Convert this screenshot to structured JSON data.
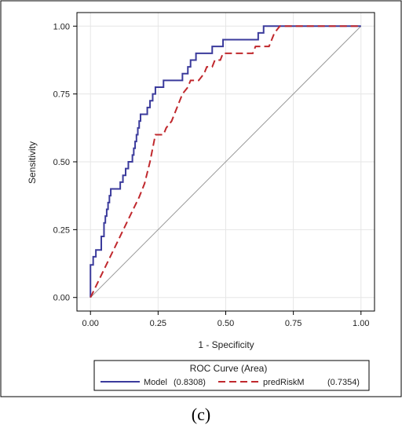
{
  "chart_data": {
    "type": "line",
    "xlabel": "1 - Specificity",
    "ylabel": "Sensitivity",
    "xlim": [
      -0.05,
      1.05
    ],
    "ylim": [
      -0.05,
      1.05
    ],
    "x_ticks": [
      "0.00",
      "0.25",
      "0.50",
      "0.75",
      "1.00"
    ],
    "y_ticks": [
      "0.00",
      "0.25",
      "0.50",
      "0.75",
      "1.00"
    ],
    "grid": true,
    "legend": {
      "title": "ROC Curve (Area)",
      "placement": "bottom"
    },
    "series": [
      {
        "name": "Model",
        "area": "(0.8308)",
        "color": "#3b3b9c",
        "style": "solid",
        "points": [
          [
            0.0,
            0.0
          ],
          [
            0.0,
            0.06
          ],
          [
            0.0,
            0.12
          ],
          [
            0.01,
            0.12
          ],
          [
            0.01,
            0.15
          ],
          [
            0.02,
            0.15
          ],
          [
            0.02,
            0.175
          ],
          [
            0.04,
            0.175
          ],
          [
            0.04,
            0.225
          ],
          [
            0.05,
            0.225
          ],
          [
            0.05,
            0.275
          ],
          [
            0.055,
            0.275
          ],
          [
            0.055,
            0.3
          ],
          [
            0.06,
            0.3
          ],
          [
            0.06,
            0.325
          ],
          [
            0.065,
            0.325
          ],
          [
            0.065,
            0.35
          ],
          [
            0.07,
            0.35
          ],
          [
            0.07,
            0.375
          ],
          [
            0.075,
            0.375
          ],
          [
            0.075,
            0.4
          ],
          [
            0.09,
            0.4
          ],
          [
            0.11,
            0.4
          ],
          [
            0.11,
            0.425
          ],
          [
            0.12,
            0.425
          ],
          [
            0.12,
            0.45
          ],
          [
            0.13,
            0.45
          ],
          [
            0.13,
            0.475
          ],
          [
            0.14,
            0.475
          ],
          [
            0.14,
            0.5
          ],
          [
            0.155,
            0.5
          ],
          [
            0.155,
            0.525
          ],
          [
            0.16,
            0.525
          ],
          [
            0.16,
            0.55
          ],
          [
            0.165,
            0.55
          ],
          [
            0.165,
            0.575
          ],
          [
            0.17,
            0.575
          ],
          [
            0.17,
            0.6
          ],
          [
            0.175,
            0.6
          ],
          [
            0.175,
            0.625
          ],
          [
            0.18,
            0.625
          ],
          [
            0.18,
            0.65
          ],
          [
            0.185,
            0.65
          ],
          [
            0.185,
            0.675
          ],
          [
            0.21,
            0.675
          ],
          [
            0.21,
            0.7
          ],
          [
            0.22,
            0.7
          ],
          [
            0.22,
            0.725
          ],
          [
            0.23,
            0.725
          ],
          [
            0.23,
            0.75
          ],
          [
            0.24,
            0.75
          ],
          [
            0.24,
            0.775
          ],
          [
            0.27,
            0.775
          ],
          [
            0.27,
            0.8
          ],
          [
            0.34,
            0.8
          ],
          [
            0.34,
            0.825
          ],
          [
            0.36,
            0.825
          ],
          [
            0.36,
            0.85
          ],
          [
            0.37,
            0.85
          ],
          [
            0.37,
            0.875
          ],
          [
            0.39,
            0.875
          ],
          [
            0.39,
            0.9
          ],
          [
            0.45,
            0.9
          ],
          [
            0.45,
            0.925
          ],
          [
            0.49,
            0.925
          ],
          [
            0.49,
            0.95
          ],
          [
            0.62,
            0.95
          ],
          [
            0.62,
            0.975
          ],
          [
            0.64,
            0.975
          ],
          [
            0.64,
            1.0
          ],
          [
            1.0,
            1.0
          ]
        ]
      },
      {
        "name": "predRiskM",
        "area": "(0.7354)",
        "color": "#c0282d",
        "style": "dashed",
        "points": [
          [
            0.0,
            0.0
          ],
          [
            0.18,
            0.37
          ],
          [
            0.2,
            0.42
          ],
          [
            0.21,
            0.46
          ],
          [
            0.22,
            0.5
          ],
          [
            0.23,
            0.55
          ],
          [
            0.235,
            0.575
          ],
          [
            0.24,
            0.6
          ],
          [
            0.27,
            0.6
          ],
          [
            0.28,
            0.625
          ],
          [
            0.3,
            0.65
          ],
          [
            0.31,
            0.675
          ],
          [
            0.32,
            0.7
          ],
          [
            0.33,
            0.725
          ],
          [
            0.34,
            0.75
          ],
          [
            0.36,
            0.775
          ],
          [
            0.37,
            0.8
          ],
          [
            0.4,
            0.8
          ],
          [
            0.42,
            0.825
          ],
          [
            0.43,
            0.85
          ],
          [
            0.45,
            0.85
          ],
          [
            0.46,
            0.875
          ],
          [
            0.48,
            0.875
          ],
          [
            0.49,
            0.9
          ],
          [
            0.6,
            0.9
          ],
          [
            0.61,
            0.925
          ],
          [
            0.66,
            0.925
          ],
          [
            0.67,
            0.95
          ],
          [
            0.68,
            0.975
          ],
          [
            0.7,
            1.0
          ],
          [
            1.0,
            1.0
          ]
        ]
      },
      {
        "role": "reference",
        "color": "#999999",
        "style": "solid",
        "points": [
          [
            0.0,
            0.0
          ],
          [
            1.0,
            1.0
          ]
        ]
      }
    ]
  },
  "caption": "(c)"
}
